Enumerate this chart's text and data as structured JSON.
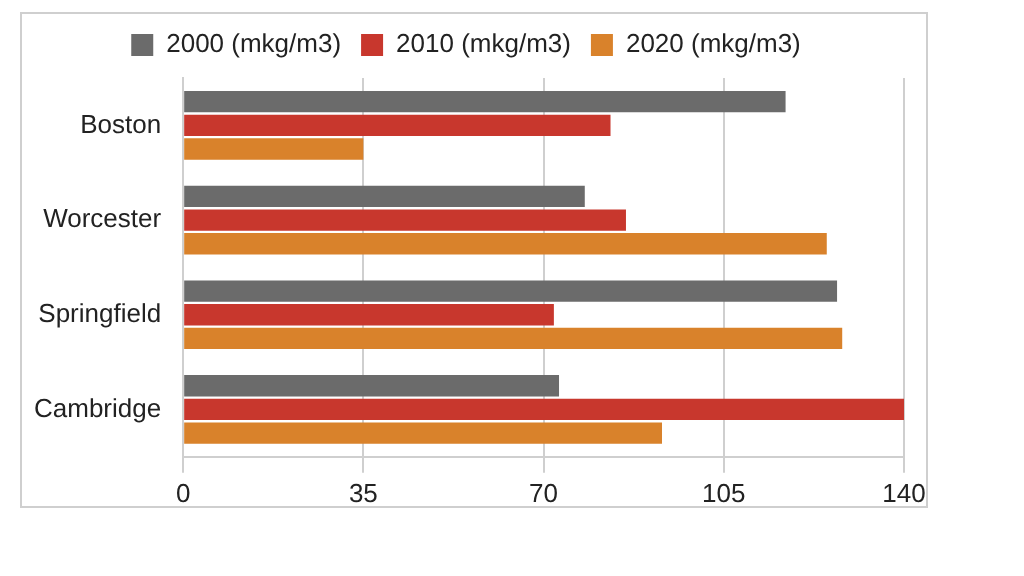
{
  "chart_data": {
    "type": "bar",
    "orientation": "horizontal",
    "categories": [
      "Boston",
      "Worcester",
      "Springfield",
      "Cambridge"
    ],
    "series": [
      {
        "name": "2000 (mkg/m3)",
        "color": "#6b6b6b",
        "values": [
          117,
          78,
          127,
          73
        ]
      },
      {
        "name": "2010 (mkg/m3)",
        "color": "#c8372d",
        "values": [
          83,
          86,
          72,
          140
        ]
      },
      {
        "name": "2020 (mkg/m3)",
        "color": "#d9822b",
        "values": [
          35,
          125,
          128,
          93
        ]
      }
    ],
    "xlim": [
      0,
      140
    ],
    "xticks": [
      0,
      35,
      70,
      105,
      140
    ],
    "grid": "x",
    "legend": "top"
  }
}
